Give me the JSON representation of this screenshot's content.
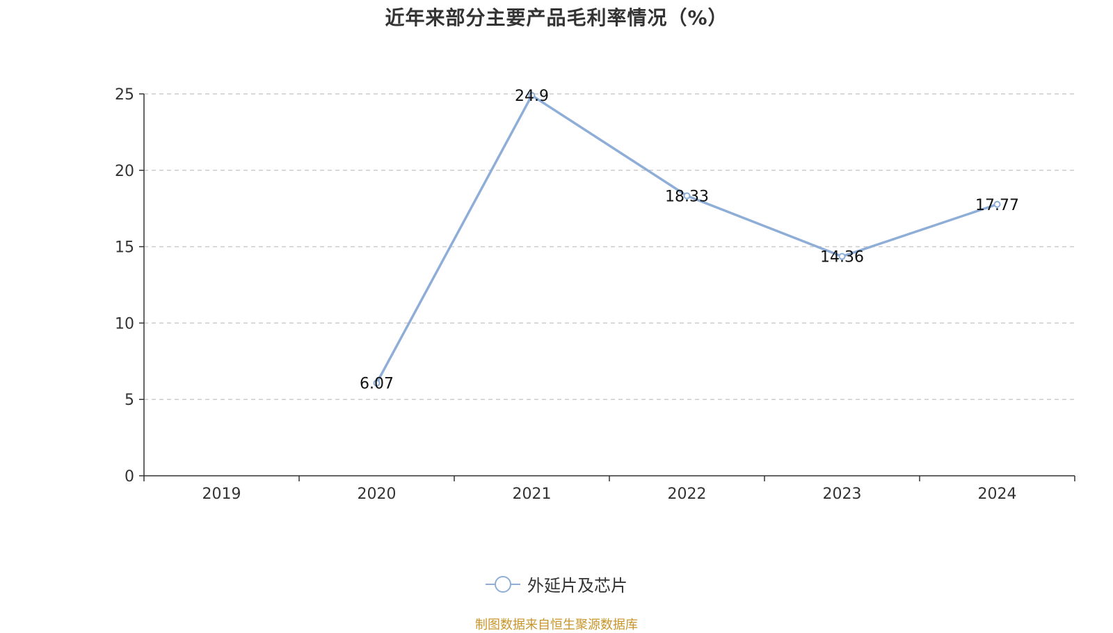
{
  "title": "近年来部分主要产品毛利率情况（%）",
  "source": "制图数据来自恒生聚源数据库",
  "colors": {
    "series": "#8eaed8",
    "grid": "#cccccc",
    "axis": "#333333",
    "source": "#c8952b"
  },
  "chart_data": {
    "type": "line",
    "title": "近年来部分主要产品毛利率情况（%）",
    "categories": [
      "2019",
      "2020",
      "2021",
      "2022",
      "2023",
      "2024"
    ],
    "series": [
      {
        "name": "外延片及芯片",
        "values": [
          null,
          6.07,
          24.9,
          18.33,
          14.36,
          17.77
        ],
        "labels": [
          "",
          "6.07",
          "24.9",
          "18.33",
          "14.36",
          "17.77"
        ]
      }
    ],
    "ylim": [
      0,
      25
    ],
    "yticks": [
      "0",
      "5",
      "10",
      "15",
      "20",
      "25"
    ],
    "ytick_values": [
      0,
      5,
      10,
      15,
      20,
      25
    ],
    "grid": true,
    "grid_style": "dashed",
    "legend": "bottom-center"
  }
}
